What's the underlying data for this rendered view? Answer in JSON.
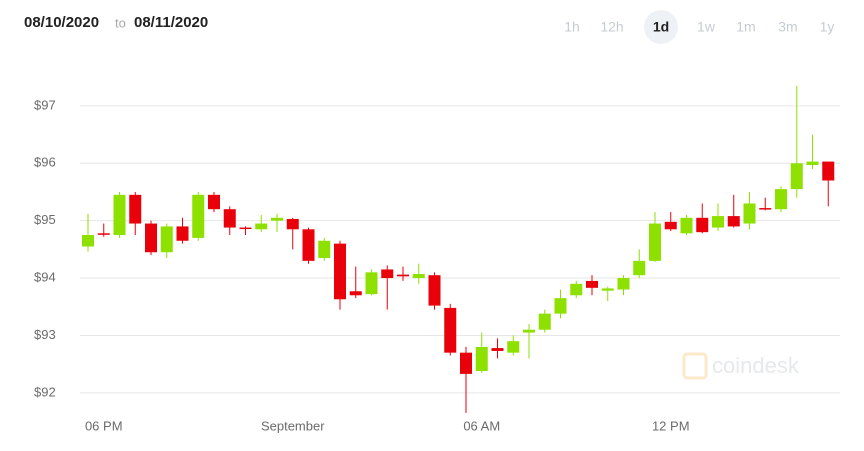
{
  "header": {
    "start": "08/10/2020",
    "separator": "to",
    "end": "08/11/2020"
  },
  "ranges": [
    "1h",
    "12h",
    "1d",
    "1w",
    "1m",
    "3m",
    "1y"
  ],
  "active_range": 2,
  "watermark": "coindesk",
  "chart_data": {
    "type": "candlestick",
    "categories": [
      null,
      "06 PM",
      null,
      null,
      null,
      null,
      null,
      null,
      null,
      null,
      null,
      null,
      null,
      "September",
      null,
      null,
      null,
      null,
      null,
      null,
      null,
      null,
      null,
      null,
      null,
      "06 AM",
      null,
      null,
      null,
      null,
      null,
      null,
      null,
      null,
      null,
      null,
      null,
      "12 PM",
      null,
      null,
      null,
      null,
      null,
      null,
      null,
      null,
      null,
      null
    ],
    "open": [
      94.55,
      94.78,
      94.75,
      95.45,
      94.95,
      94.45,
      94.9,
      94.7,
      95.45,
      95.2,
      94.88,
      94.85,
      95.0,
      95.03,
      94.85,
      94.35,
      94.6,
      93.77,
      93.72,
      94.15,
      94.06,
      94.0,
      94.05,
      93.48,
      92.7,
      92.38,
      92.78,
      92.7,
      93.05,
      93.1,
      93.38,
      93.7,
      93.95,
      93.78,
      93.8,
      94.05,
      94.3,
      94.98,
      94.78,
      95.05,
      94.88,
      95.08,
      94.95,
      95.22,
      95.2,
      95.55,
      95.97,
      96.03
    ],
    "high": [
      95.12,
      94.95,
      95.5,
      95.5,
      95.0,
      94.95,
      95.05,
      95.5,
      95.5,
      95.25,
      94.9,
      95.1,
      95.12,
      95.05,
      94.88,
      94.7,
      94.65,
      94.2,
      94.15,
      94.22,
      94.2,
      94.25,
      94.1,
      93.55,
      92.8,
      93.05,
      92.95,
      93.0,
      93.2,
      93.45,
      93.8,
      93.95,
      94.05,
      93.85,
      94.05,
      94.5,
      95.15,
      95.15,
      95.1,
      95.3,
      95.3,
      95.45,
      95.5,
      95.4,
      95.6,
      97.35,
      96.5,
      96.0
    ],
    "low": [
      94.46,
      94.72,
      94.7,
      94.75,
      94.4,
      94.35,
      94.6,
      94.65,
      95.15,
      94.75,
      94.75,
      94.8,
      94.8,
      94.5,
      94.25,
      94.3,
      93.45,
      93.65,
      93.7,
      93.45,
      93.95,
      93.9,
      93.45,
      92.65,
      91.65,
      92.35,
      92.6,
      92.65,
      92.6,
      93.05,
      93.3,
      93.65,
      93.7,
      93.6,
      93.7,
      94.0,
      94.28,
      94.82,
      94.75,
      94.78,
      94.82,
      94.88,
      94.85,
      95.18,
      95.15,
      95.4,
      95.9,
      95.25
    ],
    "close": [
      94.75,
      94.76,
      95.45,
      94.95,
      94.45,
      94.9,
      94.65,
      95.45,
      95.2,
      94.88,
      94.87,
      94.95,
      95.05,
      94.85,
      94.3,
      94.65,
      93.63,
      93.7,
      94.1,
      94.0,
      94.03,
      94.07,
      93.52,
      92.7,
      92.33,
      92.8,
      92.73,
      92.9,
      93.1,
      93.38,
      93.65,
      93.9,
      93.83,
      93.82,
      94.0,
      94.3,
      94.95,
      94.85,
      95.05,
      94.8,
      95.08,
      94.9,
      95.3,
      95.2,
      95.55,
      96.0,
      96.03,
      95.7
    ],
    "up_color": "#8ee000",
    "down_color": "#e8000b",
    "ylim": [
      91.3,
      97.8
    ],
    "yticks": [
      {
        "value": 92,
        "label": "$92"
      },
      {
        "value": 93,
        "label": "$93"
      },
      {
        "value": 94,
        "label": "$94"
      },
      {
        "value": 95,
        "label": "$95"
      },
      {
        "value": 96,
        "label": "$96"
      },
      {
        "value": 97,
        "label": "$97"
      }
    ],
    "grid": true
  }
}
